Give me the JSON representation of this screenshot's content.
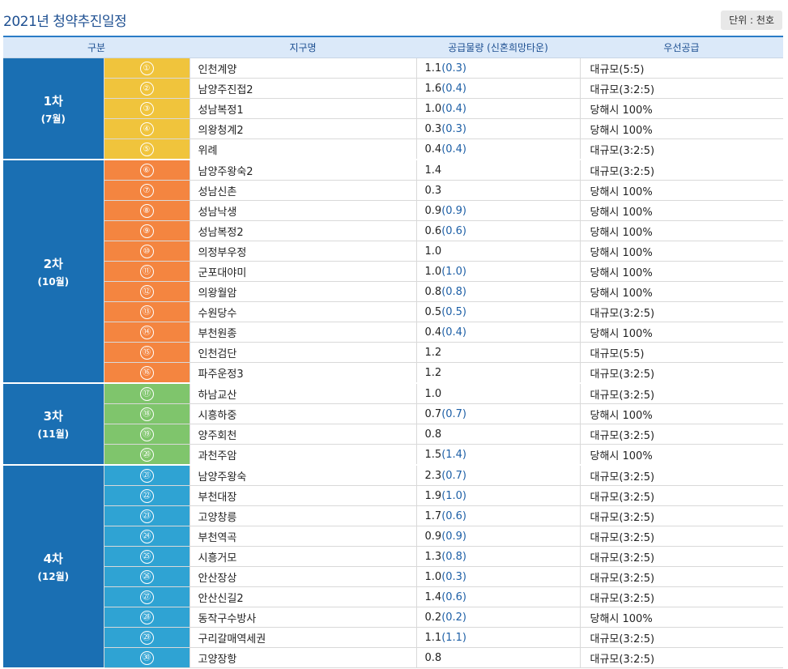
{
  "title": "2021년 청약추진일정",
  "unit_label": "단위 : 천호",
  "columns": {
    "round": "구분",
    "district": "지구명",
    "supply": "공급물량 (신혼희망타운)",
    "priority": "우선공급"
  },
  "colors": {
    "header_text": "#1d4f91",
    "round_bg": "#1a6fb3",
    "round1": "#f0c43c",
    "round2": "#f48540",
    "round3": "#7fc56c",
    "round4": "#2fa3d3",
    "newlywed_text": "#1d5fa6"
  },
  "rounds": [
    {
      "name": "1차",
      "month": "(7월)",
      "rows": [
        {
          "num": "①",
          "district": "인천계양",
          "supply": "1.1",
          "newlywed": "(0.3)",
          "priority": "대규모(5:5)"
        },
        {
          "num": "②",
          "district": "남양주진접2",
          "supply": "1.6",
          "newlywed": "(0.4)",
          "priority": "대규모(3:2:5)"
        },
        {
          "num": "③",
          "district": "성남복정1",
          "supply": "1.0",
          "newlywed": "(0.4)",
          "priority": "당해시 100%"
        },
        {
          "num": "④",
          "district": "의왕청계2",
          "supply": "0.3",
          "newlywed": "(0.3)",
          "priority": "당해시 100%"
        },
        {
          "num": "⑤",
          "district": "위례",
          "supply": "0.4",
          "newlywed": "(0.4)",
          "priority": "대규모(3:2:5)"
        }
      ]
    },
    {
      "name": "2차",
      "month": "(10월)",
      "rows": [
        {
          "num": "⑥",
          "district": "남양주왕숙2",
          "supply": "1.4",
          "newlywed": "",
          "priority": "대규모(3:2:5)"
        },
        {
          "num": "⑦",
          "district": "성남신촌",
          "supply": "0.3",
          "newlywed": "",
          "priority": "당해시 100%"
        },
        {
          "num": "⑧",
          "district": "성남낙생",
          "supply": "0.9",
          "newlywed": "(0.9)",
          "priority": "당해시 100%"
        },
        {
          "num": "⑨",
          "district": "성남복정2",
          "supply": "0.6",
          "newlywed": "(0.6)",
          "priority": "당해시 100%"
        },
        {
          "num": "⑩",
          "district": "의정부우정",
          "supply": "1.0",
          "newlywed": "",
          "priority": "당해시 100%"
        },
        {
          "num": "⑪",
          "district": "군포대야미",
          "supply": "1.0",
          "newlywed": "(1.0)",
          "priority": "당해시 100%"
        },
        {
          "num": "⑫",
          "district": "의왕월암",
          "supply": "0.8",
          "newlywed": "(0.8)",
          "priority": "당해시 100%"
        },
        {
          "num": "⑬",
          "district": "수원당수",
          "supply": "0.5",
          "newlywed": "(0.5)",
          "priority": "대규모(3:2:5)"
        },
        {
          "num": "⑭",
          "district": "부천원종",
          "supply": "0.4",
          "newlywed": "(0.4)",
          "priority": "당해시 100%"
        },
        {
          "num": "⑮",
          "district": "인천검단",
          "supply": "1.2",
          "newlywed": "",
          "priority": "대규모(5:5)"
        },
        {
          "num": "⑯",
          "district": "파주운정3",
          "supply": "1.2",
          "newlywed": "",
          "priority": "대규모(3:2:5)"
        }
      ]
    },
    {
      "name": "3차",
      "month": "(11월)",
      "rows": [
        {
          "num": "⑰",
          "district": "하남교산",
          "supply": "1.0",
          "newlywed": "",
          "priority": "대규모(3:2:5)"
        },
        {
          "num": "⑱",
          "district": "시흥하중",
          "supply": "0.7",
          "newlywed": "(0.7)",
          "priority": "당해시 100%"
        },
        {
          "num": "⑲",
          "district": "양주회천",
          "supply": "0.8",
          "newlywed": "",
          "priority": "대규모(3:2:5)"
        },
        {
          "num": "⑳",
          "district": "과천주암",
          "supply": "1.5",
          "newlywed": "(1.4)",
          "priority": "당해시 100%"
        }
      ]
    },
    {
      "name": "4차",
      "month": "(12월)",
      "rows": [
        {
          "num": "㉑",
          "district": "남양주왕숙",
          "supply": "2.3",
          "newlywed": "(0.7)",
          "priority": "대규모(3:2:5)"
        },
        {
          "num": "㉒",
          "district": "부천대장",
          "supply": "1.9",
          "newlywed": "(1.0)",
          "priority": "대규모(3:2:5)"
        },
        {
          "num": "㉓",
          "district": "고양창릉",
          "supply": "1.7",
          "newlywed": "(0.6)",
          "priority": "대규모(3:2:5)"
        },
        {
          "num": "㉔",
          "district": "부천역곡",
          "supply": "0.9",
          "newlywed": "(0.9)",
          "priority": "대규모(3:2:5)"
        },
        {
          "num": "㉕",
          "district": "시흥거모",
          "supply": "1.3",
          "newlywed": "(0.8)",
          "priority": "대규모(3:2:5)"
        },
        {
          "num": "㉖",
          "district": "안산장상",
          "supply": "1.0",
          "newlywed": "(0.3)",
          "priority": "대규모(3:2:5)"
        },
        {
          "num": "㉗",
          "district": "안산신길2",
          "supply": "1.4",
          "newlywed": "(0.6)",
          "priority": "대규모(3:2:5)"
        },
        {
          "num": "㉘",
          "district": "동작구수방사",
          "supply": "0.2",
          "newlywed": "(0.2)",
          "priority": "당해시 100%"
        },
        {
          "num": "㉙",
          "district": "구리갈매역세권",
          "supply": "1.1",
          "newlywed": "(1.1)",
          "priority": "대규모(3:2:5)"
        },
        {
          "num": "㉚",
          "district": "고양장항",
          "supply": "0.8",
          "newlywed": "",
          "priority": "대규모(3:2:5)"
        }
      ]
    }
  ]
}
